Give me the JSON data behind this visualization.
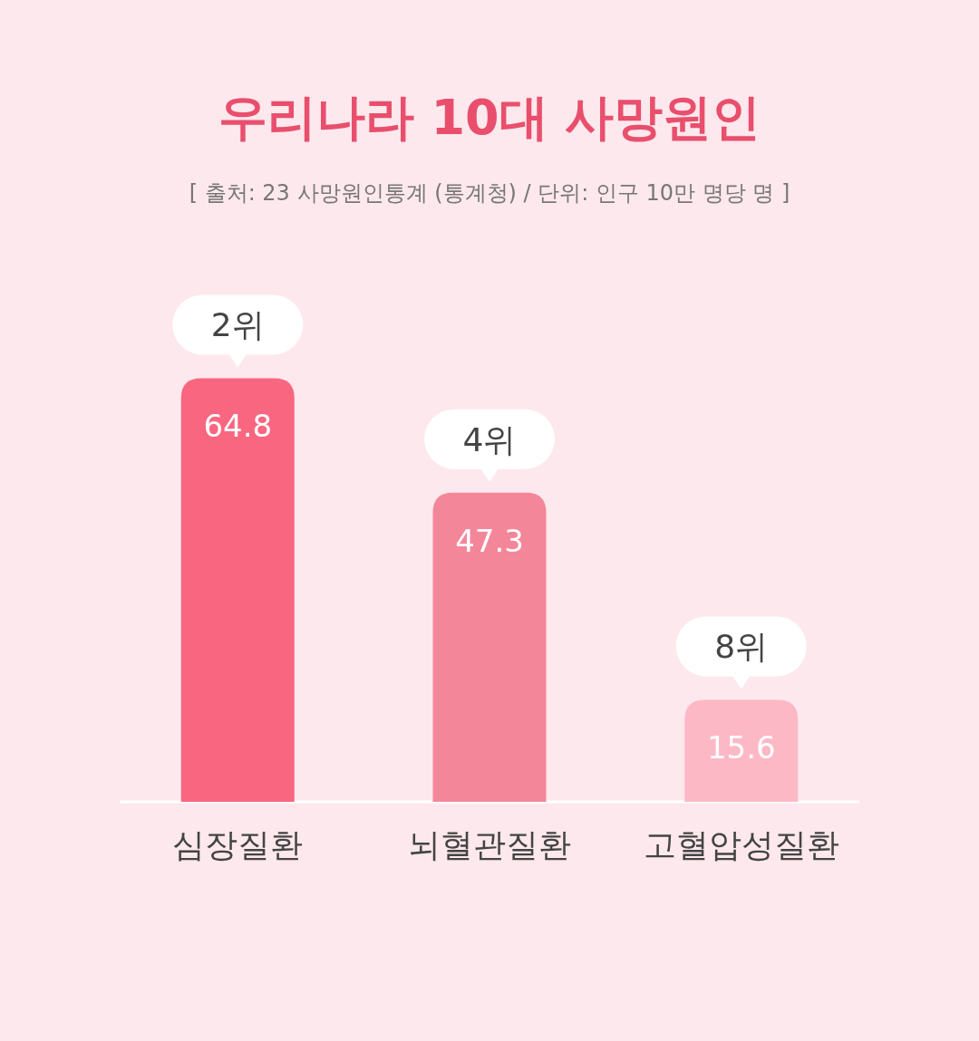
{
  "chart_data": {
    "type": "bar",
    "title": "우리나라 10대 사망원인",
    "subtitle": "[ 출처: 23 사망원인통계 (통계청) / 단위: 인구 10만 명당 명 ]",
    "categories": [
      "심장질환",
      "뇌혈관질환",
      "고혈압성질환"
    ],
    "values": [
      64.8,
      47.3,
      15.6
    ],
    "colors": [
      "#f9667f",
      "#f4869a",
      "#fdb8c6"
    ],
    "tick_labels": "x",
    "data_labels": true,
    "annotations": [
      {
        "text": "2위",
        "x": "심장질환",
        "y": 64.8
      },
      {
        "text": "4위",
        "x": "뇌혈관질환",
        "y": 47.3
      },
      {
        "text": "8위",
        "x": "고혈압성질환",
        "y": 15.6
      }
    ]
  }
}
